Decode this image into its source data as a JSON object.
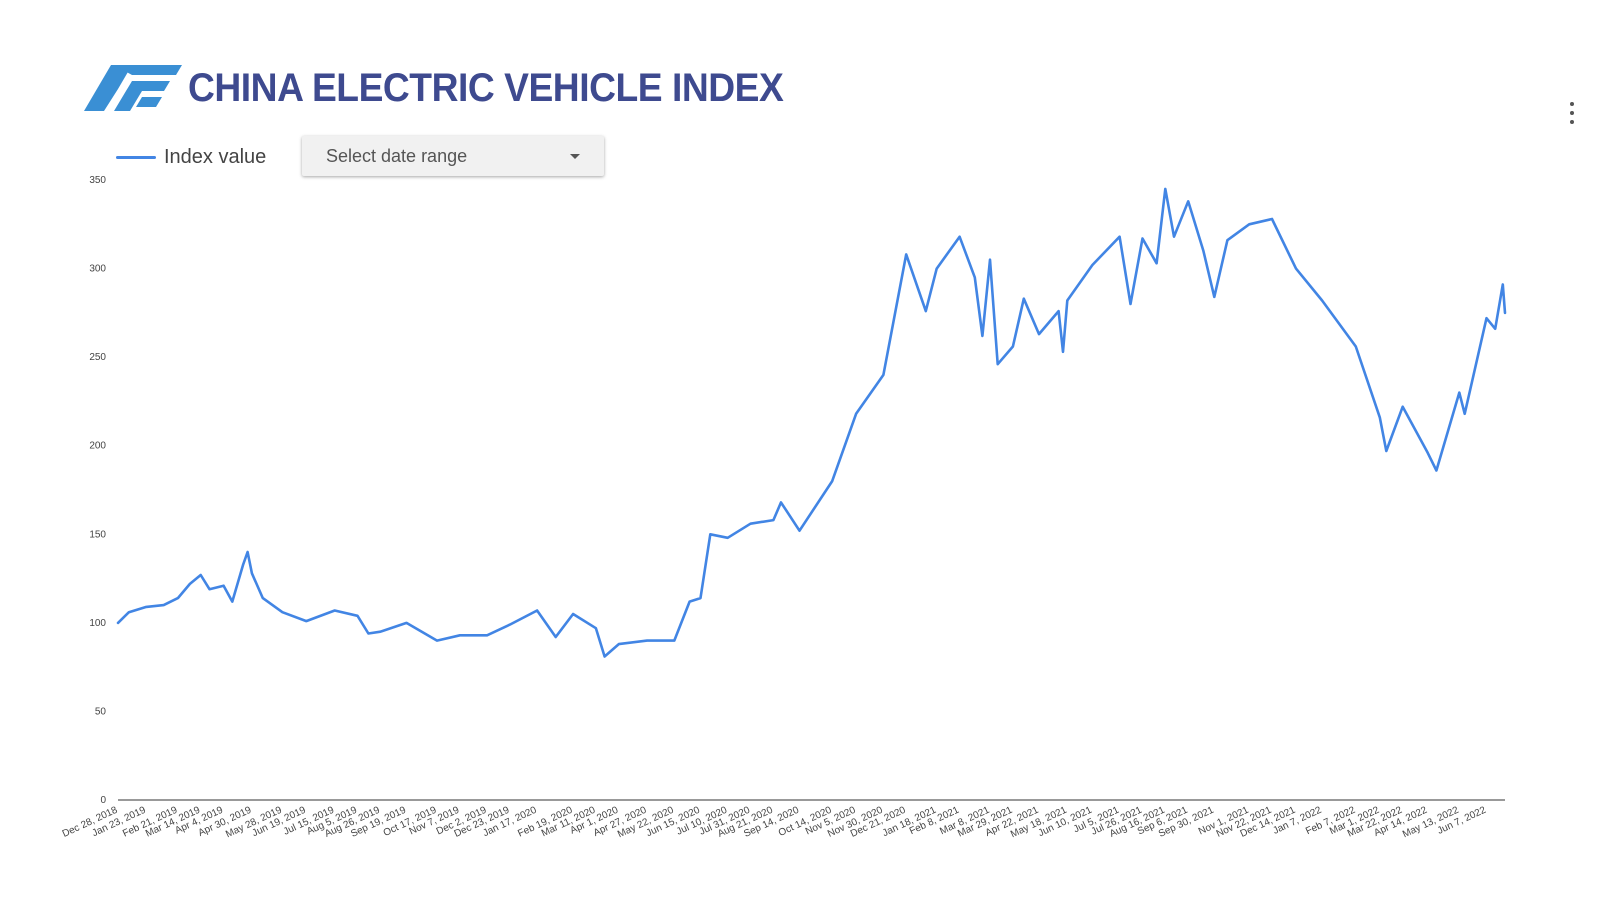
{
  "header": {
    "title": "CHINA ELECTRIC VEHICLE INDEX",
    "logo_icon": "af-logo-icon"
  },
  "menu": {
    "icon": "more-vert-icon"
  },
  "legend": {
    "label": "Index value"
  },
  "date_range": {
    "label": "Select date range",
    "icon": "caret-down-icon"
  },
  "colors": {
    "title": "#3e4a8f",
    "line": "#4285e4",
    "logo": "#3a8fd4"
  },
  "chart_data": {
    "type": "line",
    "title": "CHINA ELECTRIC VEHICLE INDEX",
    "xlabel": "",
    "ylabel": "",
    "ylim": [
      0,
      350
    ],
    "yticks": [
      0,
      50,
      100,
      150,
      200,
      250,
      300,
      350
    ],
    "grid": false,
    "legend_placement": "top-left",
    "x_tick_labels": [
      "Dec 28, 2018",
      "Jan 23, 2019",
      "Feb 21, 2019",
      "Mar 14, 2019",
      "Apr 4, 2019",
      "Apr 30, 2019",
      "May 28, 2019",
      "Jun 19, 2019",
      "Jul 15, 2019",
      "Aug 5, 2019",
      "Aug 26, 2019",
      "Sep 19, 2019",
      "Oct 17, 2019",
      "Nov 7, 2019",
      "Dec 2, 2019",
      "Dec 23, 2019",
      "Jan 17, 2020",
      "Feb 19, 2020",
      "Mar 11, 2020",
      "Apr 1, 2020",
      "Apr 27, 2020",
      "May 22, 2020",
      "Jun 15, 2020",
      "Jul 10, 2020",
      "Jul 31, 2020",
      "Aug 21, 2020",
      "Sep 14, 2020",
      "Oct 14, 2020",
      "Nov 5, 2020",
      "Nov 30, 2020",
      "Dec 21, 2020",
      "Jan 18, 2021",
      "Feb 8, 2021",
      "Mar 8, 2021",
      "Mar 29, 2021",
      "Apr 22, 2021",
      "May 18, 2021",
      "Jun 10, 2021",
      "Jul 5, 2021",
      "Jul 26, 2021",
      "Aug 16, 2021",
      "Sep 6, 2021",
      "Sep 30, 2021",
      "Nov 1, 2021",
      "Nov 22, 2021",
      "Dec 14, 2021",
      "Jan 7, 2022",
      "Feb 7, 2022",
      "Mar 1, 2022",
      "Mar 22, 2022",
      "Apr 14, 2022",
      "May 13, 2022",
      "Jun 7, 2022"
    ],
    "series": [
      {
        "name": "Index value",
        "points": [
          [
            "Dec 28, 2018",
            100
          ],
          [
            "Jan 7, 2019",
            106
          ],
          [
            "Jan 23, 2019",
            109
          ],
          [
            "Feb 8, 2019",
            110
          ],
          [
            "Feb 21, 2019",
            114
          ],
          [
            "Mar 4, 2019",
            122
          ],
          [
            "Mar 14, 2019",
            127
          ],
          [
            "Mar 22, 2019",
            119
          ],
          [
            "Apr 4, 2019",
            121
          ],
          [
            "Apr 12, 2019",
            112
          ],
          [
            "Apr 22, 2019",
            133
          ],
          [
            "Apr 26, 2019",
            140
          ],
          [
            "Apr 30, 2019",
            128
          ],
          [
            "May 10, 2019",
            114
          ],
          [
            "May 28, 2019",
            106
          ],
          [
            "Jun 19, 2019",
            101
          ],
          [
            "Jul 15, 2019",
            107
          ],
          [
            "Aug 5, 2019",
            104
          ],
          [
            "Aug 15, 2019",
            94
          ],
          [
            "Aug 26, 2019",
            95
          ],
          [
            "Sep 19, 2019",
            100
          ],
          [
            "Oct 17, 2019",
            90
          ],
          [
            "Nov 7, 2019",
            93
          ],
          [
            "Dec 2, 2019",
            93
          ],
          [
            "Dec 23, 2019",
            99
          ],
          [
            "Jan 17, 2020",
            107
          ],
          [
            "Feb 3, 2020",
            92
          ],
          [
            "Feb 19, 2020",
            105
          ],
          [
            "Mar 11, 2020",
            97
          ],
          [
            "Mar 19, 2020",
            81
          ],
          [
            "Apr 1, 2020",
            88
          ],
          [
            "Apr 27, 2020",
            90
          ],
          [
            "May 22, 2020",
            90
          ],
          [
            "Jun 5, 2020",
            112
          ],
          [
            "Jun 15, 2020",
            114
          ],
          [
            "Jun 24, 2020",
            150
          ],
          [
            "Jul 10, 2020",
            148
          ],
          [
            "Jul 31, 2020",
            156
          ],
          [
            "Aug 21, 2020",
            158
          ],
          [
            "Aug 28, 2020",
            168
          ],
          [
            "Sep 14, 2020",
            152
          ],
          [
            "Oct 14, 2020",
            180
          ],
          [
            "Nov 5, 2020",
            218
          ],
          [
            "Nov 30, 2020",
            240
          ],
          [
            "Dec 21, 2020",
            308
          ],
          [
            "Jan 8, 2021",
            276
          ],
          [
            "Jan 18, 2021",
            300
          ],
          [
            "Feb 8, 2021",
            318
          ],
          [
            "Feb 22, 2021",
            295
          ],
          [
            "Mar 1, 2021",
            262
          ],
          [
            "Mar 8, 2021",
            305
          ],
          [
            "Mar 15, 2021",
            246
          ],
          [
            "Mar 29, 2021",
            256
          ],
          [
            "Apr 8, 2021",
            283
          ],
          [
            "Apr 22, 2021",
            263
          ],
          [
            "May 10, 2021",
            276
          ],
          [
            "May 14, 2021",
            253
          ],
          [
            "May 18, 2021",
            282
          ],
          [
            "Jun 10, 2021",
            302
          ],
          [
            "Jul 5, 2021",
            318
          ],
          [
            "Jul 15, 2021",
            280
          ],
          [
            "Jul 26, 2021",
            317
          ],
          [
            "Aug 8, 2021",
            303
          ],
          [
            "Aug 16, 2021",
            345
          ],
          [
            "Aug 24, 2021",
            318
          ],
          [
            "Sep 6, 2021",
            338
          ],
          [
            "Sep 20, 2021",
            310
          ],
          [
            "Sep 30, 2021",
            284
          ],
          [
            "Oct 12, 2021",
            316
          ],
          [
            "Nov 1, 2021",
            325
          ],
          [
            "Nov 22, 2021",
            328
          ],
          [
            "Dec 14, 2021",
            300
          ],
          [
            "Jan 7, 2022",
            282
          ],
          [
            "Feb 7, 2022",
            256
          ],
          [
            "Mar 1, 2022",
            216
          ],
          [
            "Mar 7, 2022",
            197
          ],
          [
            "Mar 22, 2022",
            222
          ],
          [
            "Apr 14, 2022",
            196
          ],
          [
            "Apr 22, 2022",
            186
          ],
          [
            "May 13, 2022",
            230
          ],
          [
            "May 18, 2022",
            218
          ],
          [
            "Jun 7, 2022",
            272
          ],
          [
            "Jun 15, 2022",
            266
          ],
          [
            "Jun 22, 2022",
            291
          ],
          [
            "Jun 24, 2022",
            275
          ]
        ]
      }
    ]
  }
}
